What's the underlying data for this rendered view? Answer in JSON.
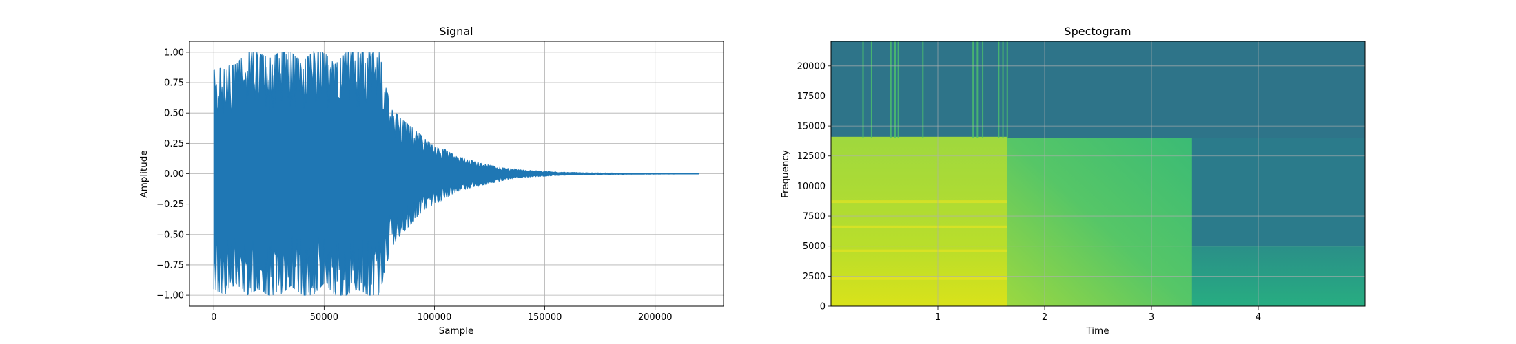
{
  "chart_data": [
    {
      "type": "line",
      "title": "Signal",
      "xlabel": "Sample",
      "ylabel": "Amplitude",
      "xlim": [
        -11000,
        231000
      ],
      "ylim": [
        -1.09,
        1.09
      ],
      "xticks": [
        0,
        50000,
        100000,
        150000,
        200000
      ],
      "xtick_labels": [
        "0",
        "50000",
        "100000",
        "150000",
        "200000"
      ],
      "yticks": [
        1.0,
        0.75,
        0.5,
        0.25,
        0.0,
        -0.25,
        -0.5,
        -0.75,
        -1.0
      ],
      "ytick_labels": [
        "1.00",
        "0.75",
        "0.50",
        "0.25",
        "0.00",
        "−0.25",
        "−0.50",
        "−0.75",
        "−1.00"
      ],
      "grid": true,
      "color": "#1f77b4",
      "series": [
        {
          "x": [
            0,
            5000,
            10000,
            15000,
            20000,
            25000,
            30000,
            35000,
            40000,
            45000,
            50000,
            55000,
            60000,
            65000,
            70000,
            75000,
            80000,
            85000,
            90000,
            95000,
            100000,
            105000,
            110000,
            115000,
            120000,
            125000,
            130000,
            135000,
            140000,
            145000,
            150000,
            155000,
            160000,
            170000,
            180000,
            190000,
            200000,
            210000,
            220000
          ],
          "upper": [
            0.85,
            0.88,
            0.9,
            1.0,
            1.0,
            0.95,
            1.0,
            1.0,
            0.92,
            1.0,
            1.0,
            0.9,
            1.0,
            1.0,
            1.0,
            1.0,
            0.55,
            0.45,
            0.38,
            0.3,
            0.22,
            0.2,
            0.14,
            0.12,
            0.09,
            0.07,
            0.05,
            0.04,
            0.03,
            0.025,
            0.02,
            0.015,
            0.012,
            0.008,
            0.006,
            0.005,
            0.004,
            0.003,
            0.003
          ],
          "lower": [
            -0.95,
            -1.0,
            -0.9,
            -1.0,
            -0.95,
            -1.0,
            -1.0,
            -0.92,
            -1.0,
            -1.0,
            -0.9,
            -1.0,
            -1.0,
            -0.95,
            -1.0,
            -1.0,
            -0.62,
            -0.5,
            -0.4,
            -0.3,
            -0.25,
            -0.2,
            -0.15,
            -0.12,
            -0.1,
            -0.08,
            -0.06,
            -0.04,
            -0.03,
            -0.025,
            -0.02,
            -0.015,
            -0.012,
            -0.008,
            -0.006,
            -0.005,
            -0.004,
            -0.003,
            -0.003
          ]
        }
      ]
    },
    {
      "type": "heatmap",
      "title": "Spectogram",
      "xlabel": "Time",
      "ylabel": "Frequency",
      "xlim": [
        0,
        5.0
      ],
      "ylim": [
        0,
        22050
      ],
      "xticks": [
        1,
        2,
        3,
        4
      ],
      "xtick_labels": [
        "1",
        "2",
        "3",
        "4"
      ],
      "yticks": [
        0,
        2500,
        5000,
        7500,
        10000,
        12500,
        15000,
        17500,
        20000
      ],
      "ytick_labels": [
        "0",
        "2500",
        "5000",
        "7500",
        "10000",
        "12500",
        "15000",
        "17500",
        "20000"
      ],
      "grid": true,
      "colormap": "viridis",
      "colors": {
        "high_band_bg": "#2e7489",
        "low_band_early": "#9fd83e",
        "low_band_bright": "#d9e21a",
        "low_band_mid": "#3bbb75",
        "low_band_late": "#2a8f88",
        "streak": "#4ec36b"
      },
      "regions": [
        {
          "t": [
            0,
            1.65
          ],
          "f": [
            0,
            14100
          ],
          "level": "bright"
        },
        {
          "t": [
            1.65,
            3.38
          ],
          "f": [
            0,
            14000
          ],
          "level": "mid"
        },
        {
          "t": [
            3.38,
            5.0
          ],
          "f": [
            0,
            5000
          ],
          "level": "late"
        }
      ],
      "streaks_t": [
        0.3,
        0.38,
        0.56,
        0.6,
        0.63,
        0.86,
        1.33,
        1.37,
        1.42,
        1.57,
        1.61,
        1.65
      ]
    }
  ]
}
